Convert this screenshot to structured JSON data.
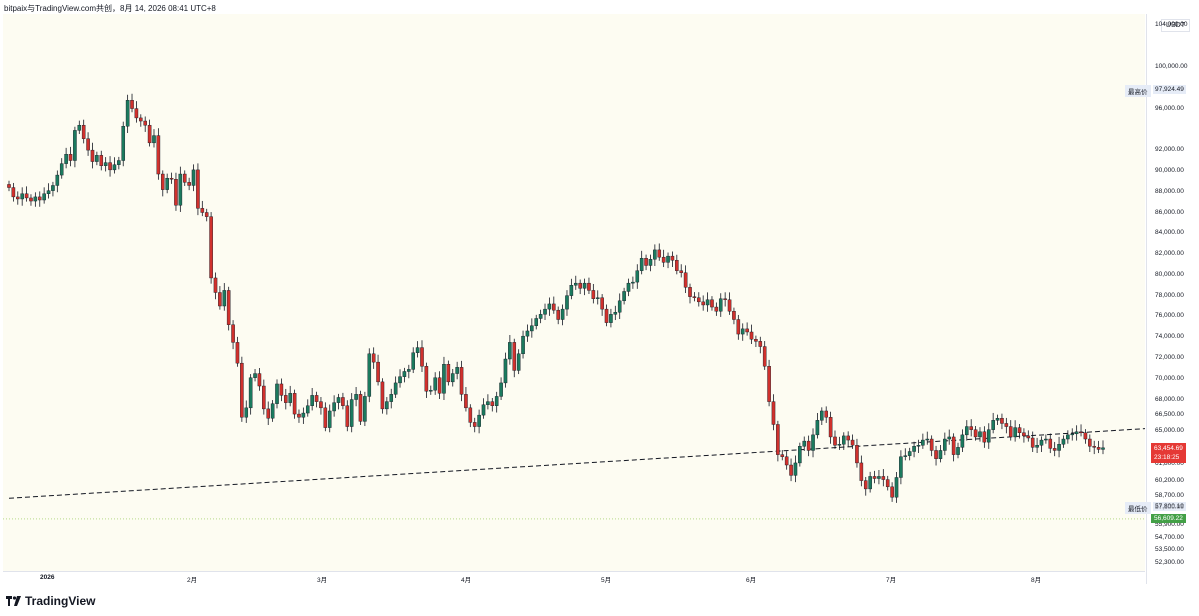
{
  "header": {
    "attribution": "bitpaix与TradingView.com共创，8月 14, 2026 08:41 UTC+8"
  },
  "price_scale": {
    "unit": "USDT",
    "ticks": [
      {
        "label": "104,000.00",
        "value": 104000
      },
      {
        "label": "100,000.00",
        "value": 100000
      },
      {
        "label": "96,000.00",
        "value": 96000
      },
      {
        "label": "92,000.00",
        "value": 92000
      },
      {
        "label": "90,000.00",
        "value": 90000
      },
      {
        "label": "88,000.00",
        "value": 88000
      },
      {
        "label": "86,000.00",
        "value": 86000
      },
      {
        "label": "84,000.00",
        "value": 84000
      },
      {
        "label": "82,000.00",
        "value": 82000
      },
      {
        "label": "80,000.00",
        "value": 80000
      },
      {
        "label": "78,000.00",
        "value": 78000
      },
      {
        "label": "76,000.00",
        "value": 76000
      },
      {
        "label": "74,000.00",
        "value": 74000
      },
      {
        "label": "72,000.00",
        "value": 72000
      },
      {
        "label": "70,000.00",
        "value": 70000
      },
      {
        "label": "68,000.00",
        "value": 68000
      },
      {
        "label": "66,500.00",
        "value": 66500
      },
      {
        "label": "65,000.00",
        "value": 65000
      },
      {
        "label": "61,800.00",
        "value": 61800
      },
      {
        "label": "60,200.00",
        "value": 60200
      },
      {
        "label": "58,700.00",
        "value": 58700
      },
      {
        "label": "55,900.00",
        "value": 55900
      },
      {
        "label": "54,700.00",
        "value": 54700
      },
      {
        "label": "53,500.00",
        "value": 53500
      },
      {
        "label": "52,300.00",
        "value": 52300
      }
    ],
    "high_flag": {
      "label": "最高价",
      "value_label": "97,924.49",
      "value": 97924.49
    },
    "low_flag": {
      "label": "最低价",
      "value_label": "57,800.19",
      "value": 57800.19
    },
    "current_price": {
      "label": "63,454.69",
      "countdown": "23:18:25",
      "value": 63454.69,
      "color": "#e53935"
    },
    "green_price": {
      "label": "56,609.22",
      "value": 56609.22,
      "color": "#43a047"
    },
    "hidden_tick_label": "57,600.00"
  },
  "time_axis": [
    "2026",
    "2月",
    "3月",
    "4月",
    "5月",
    "6月",
    "7月",
    "8月"
  ],
  "footer": {
    "brand": "TradingView"
  },
  "colors": {
    "up": "#1b7a5e",
    "down": "#d0312d",
    "background": "#fdfcf2"
  },
  "chart_data": {
    "type": "candlestick",
    "symbol_quote": "USDT",
    "interval": "1D",
    "ylim": [
      51600,
      105200
    ],
    "x_months": [
      "2026",
      "2月",
      "3月",
      "4月",
      "5月",
      "6月",
      "7月",
      "8月"
    ],
    "trendline": {
      "style": "dashed",
      "from_price": 58600,
      "to_price": 65300
    },
    "candles_close": [
      88500,
      87600,
      87400,
      87900,
      87500,
      87200,
      87600,
      87300,
      87900,
      88200,
      88700,
      89700,
      90800,
      91700,
      91100,
      94000,
      94500,
      93200,
      92100,
      91000,
      91600,
      90600,
      90900,
      90200,
      90700,
      91100,
      94400,
      96900,
      96100,
      95200,
      94900,
      94500,
      92800,
      93500,
      89800,
      88300,
      89400,
      89300,
      86800,
      89800,
      89000,
      88700,
      90200,
      86500,
      86100,
      85700,
      79800,
      78400,
      77100,
      78600,
      75300,
      73600,
      71600,
      66400,
      67300,
      70200,
      70600,
      69400,
      67200,
      66300,
      67700,
      69600,
      68500,
      67800,
      68700,
      66700,
      66400,
      66800,
      67500,
      68500,
      67900,
      67300,
      65400,
      67000,
      67800,
      68300,
      67500,
      65500,
      68100,
      68600,
      66000,
      68400,
      72500,
      71700,
      69800,
      67200,
      67900,
      68600,
      69700,
      70300,
      70800,
      71000,
      72600,
      73100,
      71300,
      68900,
      69000,
      70200,
      68700,
      71500,
      69800,
      70600,
      71200,
      68600,
      67300,
      65900,
      65500,
      66600,
      67600,
      67900,
      67500,
      68400,
      69700,
      72000,
      73600,
      70900,
      72500,
      74200,
      74700,
      75200,
      75900,
      76300,
      76800,
      77300,
      76700,
      75800,
      76800,
      78100,
      79100,
      79300,
      78800,
      79300,
      78600,
      77800,
      77900,
      76800,
      75500,
      76300,
      76500,
      77600,
      78500,
      79300,
      79400,
      80500,
      81700,
      81000,
      81600,
      82500,
      81800,
      81300,
      81900,
      81500,
      80500,
      80300,
      78900,
      78000,
      77900,
      77500,
      77200,
      77700,
      77000,
      76600,
      77800,
      77700,
      76600,
      75800,
      74400,
      74900,
      74600,
      73900,
      73700,
      73200,
      71300,
      67900,
      65700,
      62800,
      62600,
      61800,
      60800,
      62000,
      63600,
      64100,
      63200,
      64700,
      66100,
      67000,
      66400,
      64500,
      63700,
      63800,
      64600,
      64200,
      63700,
      62000,
      60300,
      59500,
      60700,
      60500,
      60700,
      60400,
      59700,
      58700,
      60600,
      62600,
      62700,
      63100,
      63600,
      63700,
      64200,
      64300,
      63200,
      62400,
      63200,
      64300,
      64500,
      62800,
      63500,
      64700,
      65500,
      65200,
      64500,
      65000,
      64000,
      65200,
      66100,
      66300,
      65800,
      65500,
      64500,
      65400,
      64900,
      64600,
      64400,
      63500,
      63700,
      64200,
      64300,
      63400,
      63200,
      63800,
      64300,
      64700,
      64800,
      65000,
      64900,
      64300,
      63600,
      63500,
      63300,
      63455
    ]
  }
}
